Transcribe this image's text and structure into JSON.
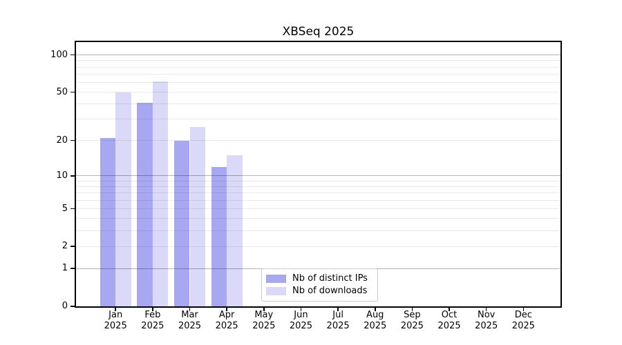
{
  "title": "XBSeq 2025",
  "legend": {
    "items": [
      {
        "label": "Nb of distinct IPs",
        "color": "#a8a8f2"
      },
      {
        "label": "Nb of downloads",
        "color": "#dadaf8"
      }
    ]
  },
  "chart_data": {
    "type": "bar",
    "title": "XBSeq 2025",
    "categories": [
      "Jan 2025",
      "Feb 2025",
      "Mar 2025",
      "Apr 2025",
      "May 2025",
      "Jun 2025",
      "Jul 2025",
      "Aug 2025",
      "Sep 2025",
      "Oct 2025",
      "Nov 2025",
      "Dec 2025"
    ],
    "series": [
      {
        "name": "Nb of distinct IPs",
        "color": "#a8a8f2",
        "values": [
          21,
          41,
          20,
          12,
          0,
          0,
          0,
          0,
          0,
          0,
          0,
          0
        ]
      },
      {
        "name": "Nb of downloads",
        "color": "#dadaf8",
        "values": [
          50,
          61,
          26,
          15,
          0,
          0,
          0,
          0,
          0,
          0,
          0,
          0
        ]
      }
    ],
    "xlabel": "",
    "ylabel": "",
    "yscale": "log10(1+y)",
    "ylim": [
      0,
      127
    ],
    "y_ticks": [
      100,
      50,
      20,
      10,
      5,
      2,
      1,
      0
    ],
    "grid_minor_lines": [
      2,
      3,
      4,
      5,
      6,
      7,
      8,
      9,
      20,
      30,
      40,
      50,
      60,
      70,
      80,
      90
    ],
    "grid_major_lines": [
      1,
      10,
      100
    ],
    "grid": "horizontal",
    "legend_position": "lower center-left inside axes"
  }
}
